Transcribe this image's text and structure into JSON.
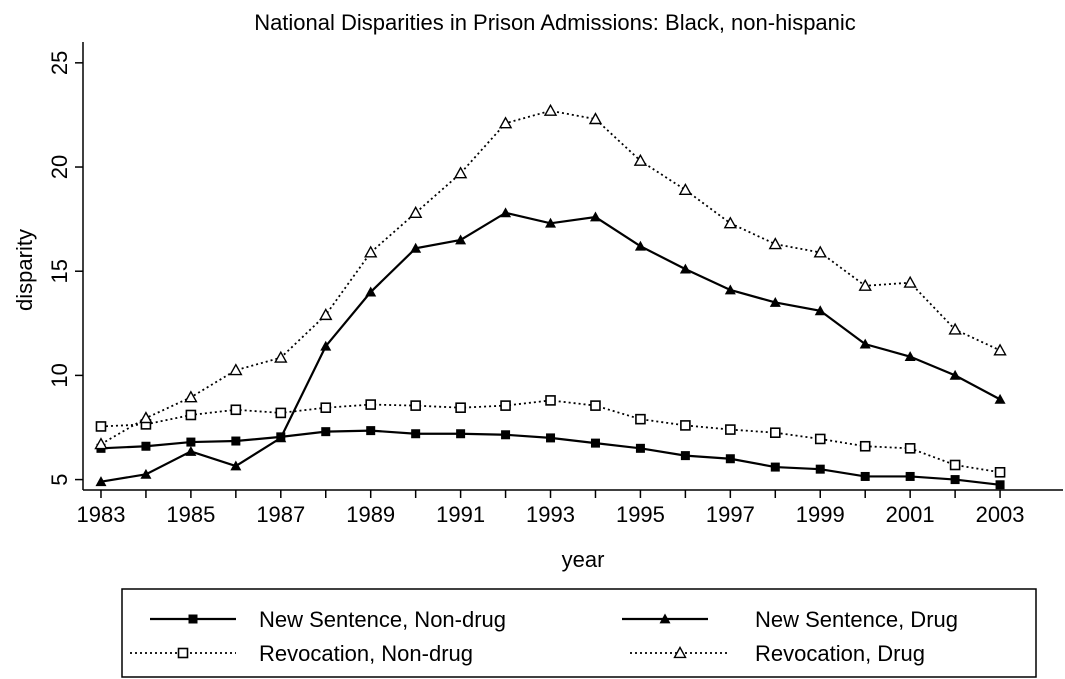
{
  "chart_data": {
    "type": "line",
    "title": "National Disparities in Prison Admissions: Black, non-hispanic",
    "xlabel": "year",
    "ylabel": "disparity",
    "xlim": [
      1982.6,
      2004.4
    ],
    "ylim": [
      4.5,
      26.0
    ],
    "x_ticks": [
      "1983",
      "1985",
      "1987",
      "1989",
      "1991",
      "1993",
      "1995",
      "1997",
      "1999",
      "2001",
      "2003"
    ],
    "y_ticks": [
      "5",
      "10",
      "15",
      "20",
      "25"
    ],
    "grid": false,
    "legend_position": "bottom",
    "x": [
      1983,
      1984,
      1985,
      1986,
      1987,
      1988,
      1989,
      1990,
      1991,
      1992,
      1993,
      1994,
      1995,
      1996,
      1997,
      1998,
      1999,
      2000,
      2001,
      2002,
      2003
    ],
    "series": [
      {
        "name": "New Sentence, Non-drug",
        "style": "solid",
        "marker": "filled-square",
        "values": [
          6.5,
          6.6,
          6.8,
          6.85,
          7.05,
          7.3,
          7.35,
          7.2,
          7.2,
          7.15,
          7.0,
          6.75,
          6.5,
          6.15,
          6.0,
          5.6,
          5.5,
          5.15,
          5.15,
          5.0,
          4.75
        ]
      },
      {
        "name": "New Sentence, Drug",
        "style": "solid",
        "marker": "filled-triangle",
        "values": [
          4.9,
          5.25,
          6.35,
          5.65,
          7.0,
          11.4,
          14.0,
          16.1,
          16.5,
          17.8,
          17.3,
          17.6,
          16.2,
          15.1,
          14.1,
          13.5,
          13.1,
          11.5,
          10.9,
          10.0,
          8.85
        ]
      },
      {
        "name": "Revocation, Non-drug",
        "style": "dotted",
        "marker": "hollow-square",
        "values": [
          7.55,
          7.65,
          8.1,
          8.35,
          8.2,
          8.45,
          8.6,
          8.55,
          8.45,
          8.55,
          8.8,
          8.55,
          7.9,
          7.6,
          7.4,
          7.25,
          6.95,
          6.6,
          6.5,
          5.7,
          5.35
        ]
      },
      {
        "name": "Revocation, Drug",
        "style": "dotted",
        "marker": "hollow-triangle",
        "values": [
          6.7,
          7.95,
          8.95,
          10.25,
          10.85,
          12.9,
          15.9,
          17.8,
          19.7,
          22.1,
          22.7,
          22.3,
          20.3,
          18.9,
          17.3,
          16.3,
          15.9,
          14.3,
          14.45,
          12.2,
          11.2
        ]
      }
    ]
  }
}
